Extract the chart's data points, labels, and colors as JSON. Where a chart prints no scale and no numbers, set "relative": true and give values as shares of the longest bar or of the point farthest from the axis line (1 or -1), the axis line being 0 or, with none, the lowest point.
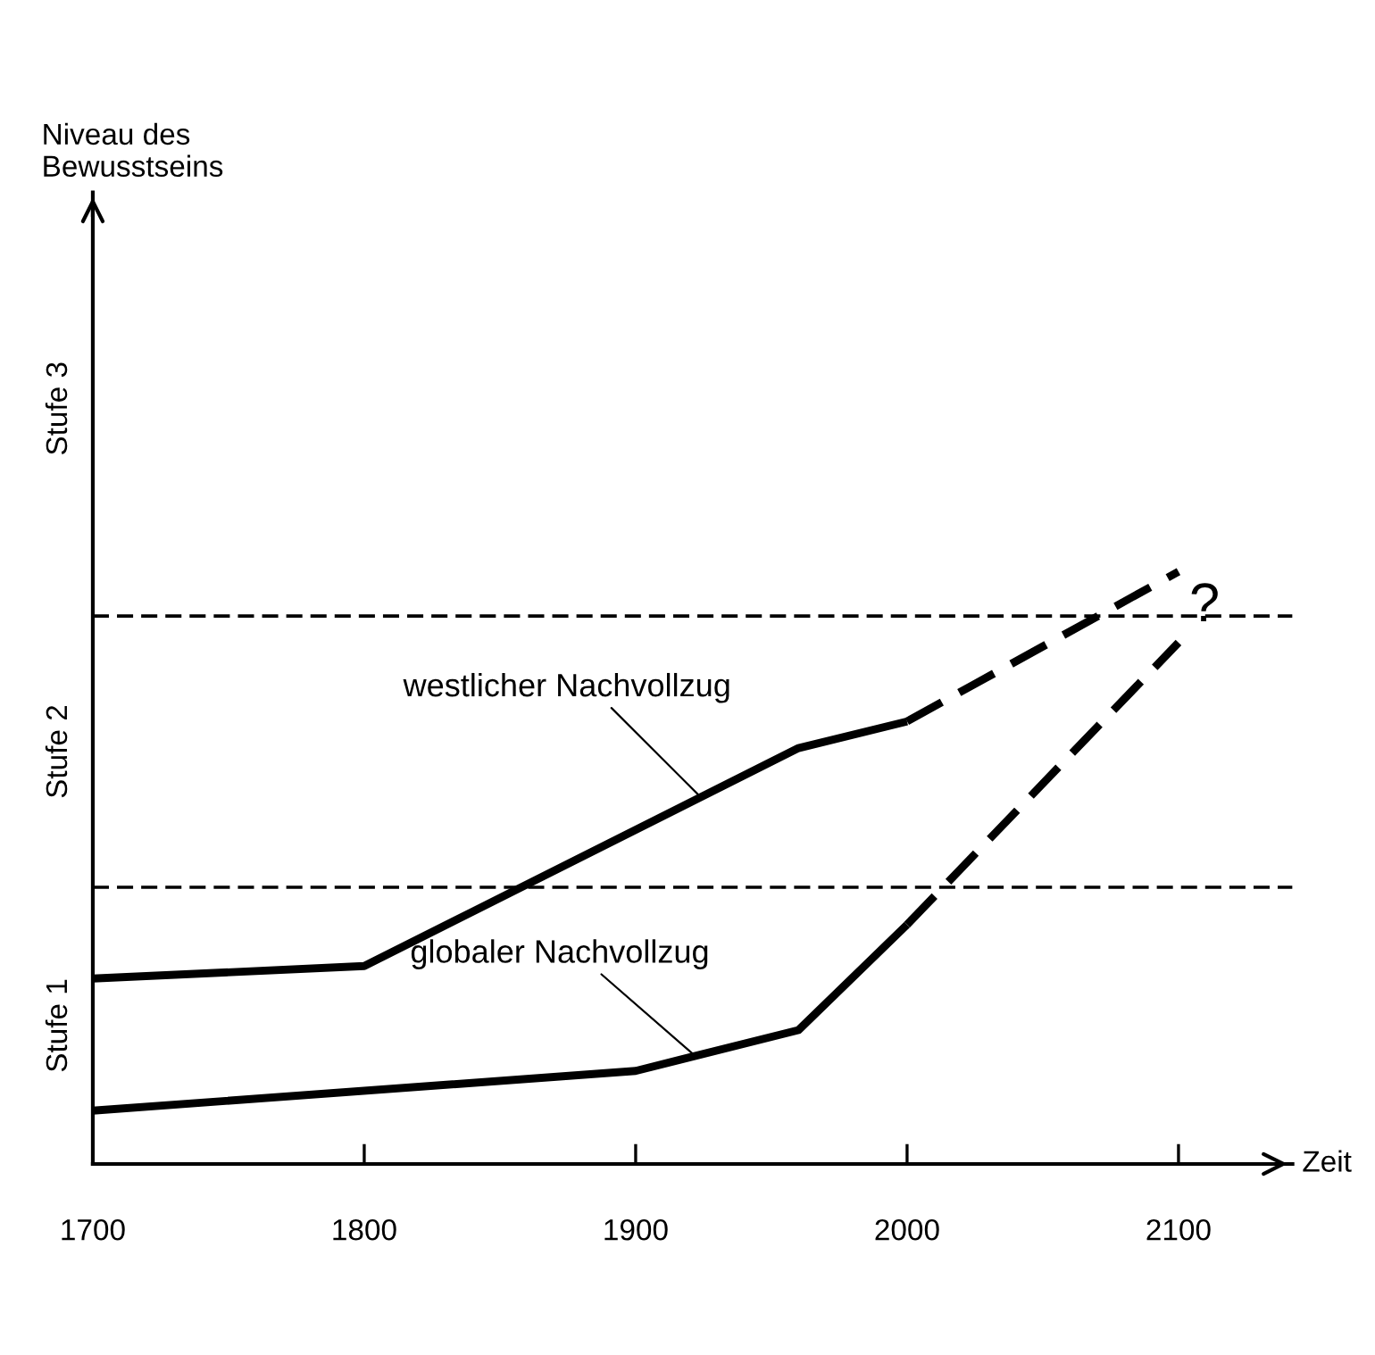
{
  "chart_data": {
    "type": "line",
    "relative": true,
    "xlabel": "Zeit",
    "xlim": [
      1700,
      2142
    ],
    "xticks": [
      1700,
      1800,
      1900,
      2000,
      2100
    ],
    "series": [
      {
        "color": "#000000",
        "line_style": "solid",
        "x": [
          1700,
          1800,
          1960,
          2000
        ],
        "values": [
          0.313,
          0.334,
          0.702,
          0.747
        ]
      },
      {
        "color": "#000000",
        "line_style": "dashed",
        "x": [
          2000,
          2100
        ],
        "values": [
          0.747,
          1.0
        ]
      },
      {
        "color": "#000000",
        "line_style": "solid",
        "x": [
          1700,
          1900,
          1960,
          2000
        ],
        "values": [
          0.09,
          0.157,
          0.226,
          0.404
        ]
      },
      {
        "color": "#000000",
        "line_style": "dashed",
        "x": [
          2000,
          2100
        ],
        "values": [
          0.404,
          0.88
        ]
      }
    ],
    "ref_lines": [
      {
        "axis": "y",
        "value": 0.925,
        "color": "#000000",
        "line_style": "dashed"
      },
      {
        "axis": "y",
        "value": 0.467,
        "color": "#000000",
        "line_style": "dashed"
      }
    ],
    "annotations": [
      {
        "text": "westlicher Nachvollzug",
        "x": 1924,
        "y": 0.619
      },
      {
        "text": "globaler Nachvollzug",
        "x": 1922,
        "y": 0.182
      },
      "?",
      "Stufe 1",
      "Stufe 2",
      "Stufe 3",
      "Niveau des Bewusstseins"
    ],
    "grid": false,
    "legend": false,
    "marker": "none"
  }
}
